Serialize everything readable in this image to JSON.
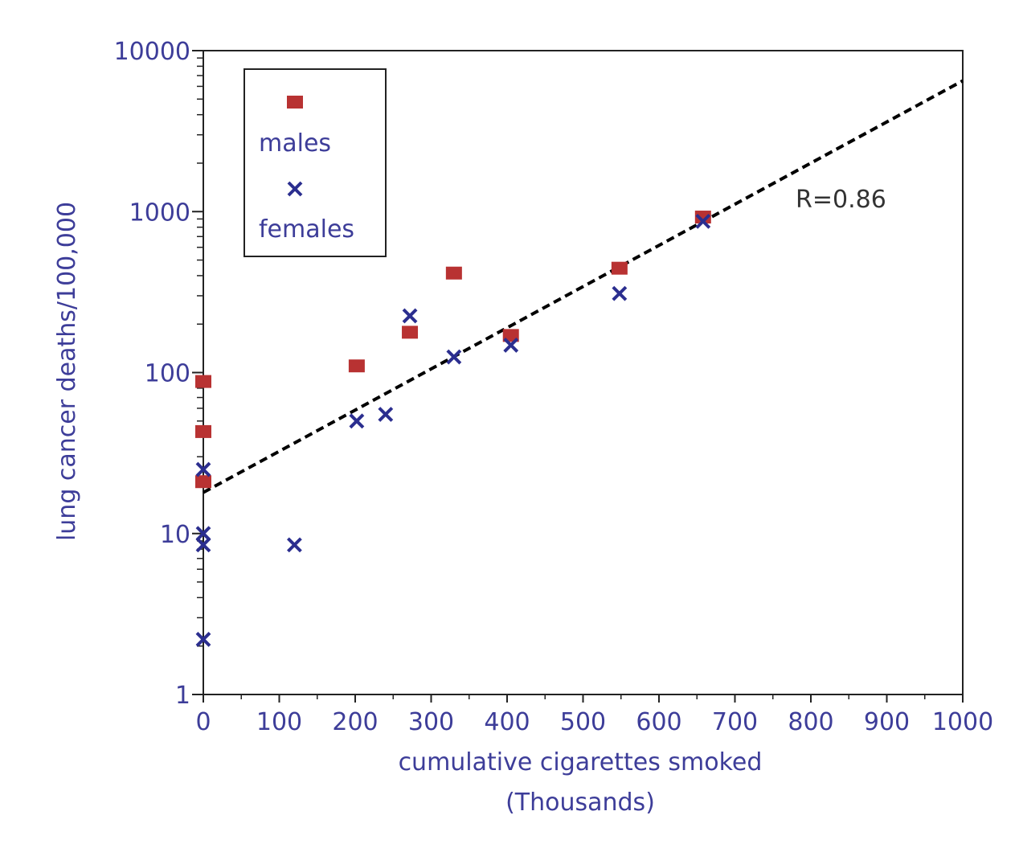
{
  "chart_data": {
    "type": "scatter",
    "xlabel_line1": "cumulative cigarettes smoked",
    "xlabel_line2": "(Thousands)",
    "ylabel": "lung cancer deaths/100,000",
    "xlim": [
      0,
      1000
    ],
    "ylim": [
      1,
      10000
    ],
    "yscale": "log",
    "x_ticks": [
      "0",
      "100",
      "200",
      "300",
      "400",
      "500",
      "600",
      "700",
      "800",
      "900",
      "1000"
    ],
    "y_ticks": [
      "1",
      "10",
      "100",
      "1000",
      "10000"
    ],
    "legend_position": "top-left",
    "series": [
      {
        "name": "males",
        "marker": "square",
        "color": "#b83232",
        "points": [
          [
            0,
            88
          ],
          [
            0,
            43
          ],
          [
            0,
            21
          ],
          [
            202,
            110
          ],
          [
            272,
            178
          ],
          [
            330,
            415
          ],
          [
            405,
            170
          ],
          [
            548,
            445
          ],
          [
            658,
            925
          ]
        ]
      },
      {
        "name": "females",
        "marker": "x",
        "color": "#2b2e8f",
        "points": [
          [
            0,
            25
          ],
          [
            0,
            10
          ],
          [
            0,
            8.5
          ],
          [
            0,
            2.2
          ],
          [
            120,
            8.5
          ],
          [
            202,
            50
          ],
          [
            240,
            55
          ],
          [
            272,
            225
          ],
          [
            330,
            125
          ],
          [
            405,
            148
          ],
          [
            548,
            310
          ],
          [
            658,
            870
          ]
        ]
      }
    ],
    "fit_line": {
      "style": "dashed",
      "color": "#000000",
      "start": [
        0,
        18
      ],
      "end": [
        1000,
        6500
      ]
    },
    "annotation": "R=0.86",
    "grid": false
  }
}
